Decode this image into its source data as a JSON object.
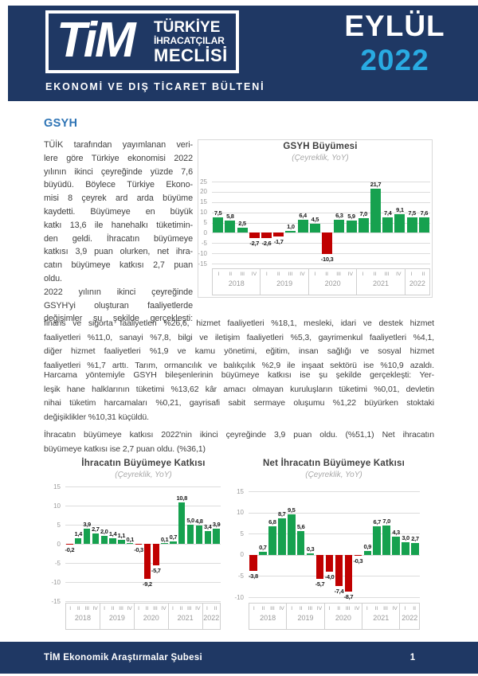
{
  "header": {
    "logo": {
      "tim": "TiM",
      "line1": "TÜRKİYE",
      "line2": "İHRACATÇILAR",
      "line3": "MECLİSİ"
    },
    "tagline": "EKONOMİ VE DIŞ TİCARET BÜLTENİ",
    "month": "EYLÜL",
    "year": "2022"
  },
  "section": {
    "title": "GSYH"
  },
  "body": {
    "column_paragraphs": [
      [
        "TÜİK tarafından yayımlanan veri-",
        "lere göre Türkiye ekonomisi 2022",
        "yılının ikinci çeyreğinde yüzde 7,6",
        "büyüdü. Böylece Türkiye Ekono-",
        "misi 8 çeyrek ard arda büyüme",
        "kaydetti. Büyümeye en büyük",
        "katkı 13,6 ile hanehalkı tüketimin-",
        "den geldi. İhracatın büyümeye",
        "katkısı 3,9 puan olurken, net ihra-",
        "catın büyümeye katkısı 2,7 puan",
        "oldu."
      ],
      [
        "2022 yılının ikinci çeyreğinde",
        "GSYH'yi oluşturan faaliyetlerde",
        "değişimler şu şekilde gerçekleşti:"
      ]
    ],
    "full_paragraphs": [
      [
        "finans ve sigorta faaliyetleri %26,6, hizmet faaliyetleri %18,1, mesleki, idari ve destek hizmet",
        "faaliyetleri %11,0, sanayi %7,8, bilgi ve iletişim faaliyetleri %5,3, gayrimenkul faaliyetleri %4,1,",
        "diğer hizmet faaliyetleri %1,9 ve kamu yönetimi, eğitim, insan sağlığı ve sosyal hizmet",
        "faaliyetleri %1,7 arttı. Tarım, ormancılık ve balıkçılık %2,9 ile inşaat sektörü ise %10,9 azaldı."
      ],
      [
        "Harcama yöntemiyle GSYH bileşenlerinin büyümeye katkısı ise şu şekilde gerçekleşti: Yer-",
        "leşik hane halklarının tüketimi %13,62 kâr amacı olmayan kuruluşların tüketimi %0,01, devletin",
        "nihai tüketim harcamaları %0,21, gayrisafi sabit sermaye oluşumu %1,22 büyürken stoktaki",
        "değişiklikler %10,31 küçüldü."
      ],
      [
        "İhracatın büyümeye katkısı 2022'nin ikinci çeyreğinde 3,9 puan oldu. (%51,1) Net ihracatın",
        "büyümeye katkısı ise 2,7 puan oldu. (%36,1)"
      ]
    ]
  },
  "chart_data": [
    {
      "type": "bar",
      "title": "GSYH Büyümesi",
      "subtitle": "(Çeyreklik, YoY)",
      "years": [
        {
          "label": "2018",
          "quarters": [
            "I",
            "II",
            "III",
            "IV"
          ]
        },
        {
          "label": "2019",
          "quarters": [
            "I",
            "II",
            "III",
            "IV"
          ]
        },
        {
          "label": "2020",
          "quarters": [
            "I",
            "II",
            "III",
            "IV"
          ]
        },
        {
          "label": "2021",
          "quarters": [
            "I",
            "II",
            "III",
            "IV"
          ]
        },
        {
          "label": "2022",
          "quarters": [
            "I",
            "II"
          ]
        }
      ],
      "values": [
        7.5,
        5.8,
        2.5,
        -2.7,
        -2.6,
        -1.7,
        1.0,
        6.4,
        4.5,
        -10.3,
        6.3,
        5.9,
        7.0,
        21.7,
        7.4,
        9.1,
        7.5,
        7.6
      ],
      "value_labels": [
        "7,5",
        "5,8",
        "2,5",
        "-2,7",
        "-2,6",
        "-1,7",
        "1,0",
        "6,4",
        "4,5",
        "-10,3",
        "6,3",
        "5,9",
        "7,0",
        "21,7",
        "7,4",
        "9,1",
        "7,5",
        "7,6"
      ],
      "yticks": [
        25,
        20,
        15,
        10,
        5,
        0,
        -5,
        -10,
        -15
      ],
      "ylim": [
        -15,
        25
      ],
      "grid": true,
      "legend": "none"
    },
    {
      "type": "bar",
      "title": "İhracatın Büyümeye Katkısı",
      "subtitle": "(Çeyreklik, YoY)",
      "years": [
        {
          "label": "2018",
          "quarters": [
            "I",
            "II",
            "III",
            "IV"
          ]
        },
        {
          "label": "2019",
          "quarters": [
            "I",
            "II",
            "III",
            "IV"
          ]
        },
        {
          "label": "2020",
          "quarters": [
            "I",
            "II",
            "III",
            "IV"
          ]
        },
        {
          "label": "2021",
          "quarters": [
            "I",
            "II",
            "III",
            "IV"
          ]
        },
        {
          "label": "2022",
          "quarters": [
            "I",
            "II"
          ]
        }
      ],
      "values": [
        -0.2,
        1.4,
        3.9,
        2.7,
        2.0,
        1.4,
        1.1,
        0.1,
        -0.3,
        -9.2,
        -5.7,
        0.1,
        0.7,
        10.8,
        5.0,
        4.8,
        3.4,
        3.9
      ],
      "value_labels": [
        "-0,2",
        "1,4",
        "3,9",
        "2,7",
        "2,0",
        "1,4",
        "1,1",
        "0,1",
        "-0,3",
        "-9,2",
        "-5,7",
        "0,1",
        "0,7",
        "10,8",
        "5,0",
        "4,8",
        "3,4",
        "3,9"
      ],
      "yticks": [
        15,
        10,
        5,
        0,
        -5,
        -10,
        -15
      ],
      "ylim": [
        -15,
        15
      ],
      "grid": true,
      "legend": "none"
    },
    {
      "type": "bar",
      "title": "Net İhracatın Büyümeye Katkısı",
      "subtitle": "(Çeyreklik, YoY)",
      "years": [
        {
          "label": "2018",
          "quarters": [
            "I",
            "II",
            "III",
            "IV"
          ]
        },
        {
          "label": "2019",
          "quarters": [
            "I",
            "II",
            "III",
            "IV"
          ]
        },
        {
          "label": "2020",
          "quarters": [
            "I",
            "II",
            "III",
            "IV"
          ]
        },
        {
          "label": "2021",
          "quarters": [
            "I",
            "II",
            "III",
            "IV"
          ]
        },
        {
          "label": "2022",
          "quarters": [
            "I",
            "II"
          ]
        }
      ],
      "values": [
        -3.8,
        0.7,
        6.8,
        8.7,
        9.5,
        5.6,
        0.3,
        -5.7,
        -4.0,
        -7.4,
        -8.7,
        -0.3,
        0.9,
        6.7,
        7.0,
        4.3,
        3.0,
        2.7
      ],
      "value_labels": [
        "-3,8",
        "0,7",
        "6,8",
        "8,7",
        "9,5",
        "5,6",
        "0,3",
        "-5,7",
        "-4,0",
        "-7,4",
        "-8,7",
        "-0,3",
        "0,9",
        "6,7",
        "7,0",
        "4,3",
        "3,0",
        "2,7"
      ],
      "yticks": [
        15,
        10,
        5,
        0,
        -5,
        -10
      ],
      "ylim": [
        -10,
        15
      ],
      "grid": true,
      "legend": "none"
    }
  ],
  "footer": {
    "department": "TİM Ekonomik Araştırmalar Şubesi",
    "page_number": "1"
  },
  "colors": {
    "navy": "#1f3864",
    "accent_blue": "#29abe2",
    "heading_blue": "#2e74b5",
    "positive_bar": "#16a14f",
    "negative_bar": "#c00000",
    "grid": "#dcdcdc",
    "axis_text": "#9a9a9a"
  }
}
